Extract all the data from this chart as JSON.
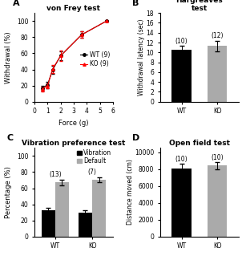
{
  "panel_A": {
    "title": "von Frey test",
    "xlabel": "Force (g)",
    "ylabel": "Withdrawal (%)",
    "wt_x": [
      0.6,
      1.0,
      1.4,
      2.0,
      3.6,
      5.5
    ],
    "wt_y": [
      17,
      21,
      40,
      57,
      83,
      100
    ],
    "wt_yerr": [
      3,
      4,
      5,
      5,
      4,
      0
    ],
    "ko_x": [
      0.6,
      1.0,
      1.4,
      2.0,
      3.6,
      5.5
    ],
    "ko_y": [
      16,
      20,
      41,
      57,
      83,
      100
    ],
    "ko_yerr": [
      3,
      3,
      5,
      6,
      4,
      0
    ],
    "wt_label": "WT (9)",
    "ko_label": "KO (9)",
    "xlim": [
      0,
      6
    ],
    "ylim": [
      0,
      110
    ],
    "xticks": [
      0,
      1,
      2,
      3,
      4,
      5,
      6
    ],
    "yticks": [
      0,
      20,
      40,
      60,
      80,
      100
    ]
  },
  "panel_B": {
    "title": "Hargreaves\ntest",
    "ylabel": "Withdrawal latency (sec)",
    "categories": [
      "WT",
      "KO"
    ],
    "values": [
      10.5,
      11.3
    ],
    "errors": [
      0.8,
      1.0
    ],
    "colors": [
      "#000000",
      "#aaaaaa"
    ],
    "ns": [
      "(10)",
      "(12)"
    ],
    "ylim": [
      0,
      18
    ],
    "yticks": [
      0,
      2,
      4,
      6,
      8,
      10,
      12,
      14,
      16,
      18
    ]
  },
  "panel_C": {
    "title": "Vibration preference test",
    "ylabel": "Percentage (%)",
    "categories": [
      "WT",
      "KO"
    ],
    "vibration_values": [
      33,
      30
    ],
    "vibration_errors": [
      3,
      3
    ],
    "default_values": [
      67,
      70
    ],
    "default_errors": [
      3,
      3
    ],
    "vibration_color": "#000000",
    "default_color": "#aaaaaa",
    "ns": [
      "(13)",
      "(7)"
    ],
    "ylim": [
      0,
      110
    ],
    "yticks": [
      0,
      20,
      40,
      60,
      80,
      100
    ]
  },
  "panel_D": {
    "title": "Open field test",
    "ylabel": "Distance moved (cm)",
    "categories": [
      "WT",
      "KO"
    ],
    "values": [
      8100,
      8400
    ],
    "errors": [
      500,
      400
    ],
    "colors": [
      "#000000",
      "#aaaaaa"
    ],
    "ns": [
      "(10)",
      "(10)"
    ],
    "ylim": [
      0,
      10500
    ],
    "yticks": [
      0,
      2000,
      4000,
      6000,
      8000,
      10000
    ]
  },
  "label_fontsize": 6,
  "title_fontsize": 6.5,
  "tick_fontsize": 5.5,
  "annotation_fontsize": 5.5
}
